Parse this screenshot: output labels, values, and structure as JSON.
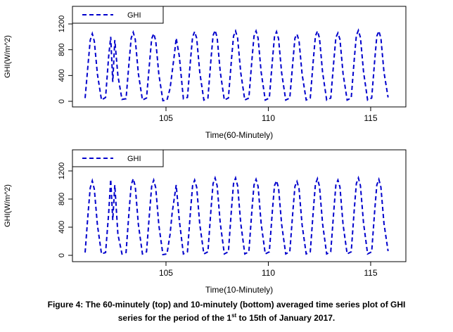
{
  "chart_data": [
    {
      "type": "line",
      "xlabel": "Time(60-Minutely)",
      "ylabel": "GHI(W/m^2)",
      "xlim": [
        100.43,
        116.72
      ],
      "ylim": [
        -87,
        1473
      ],
      "xticks": [
        105,
        110,
        115
      ],
      "yticks": [
        0,
        400,
        800,
        1200
      ],
      "legend": "top-left",
      "grid": false,
      "x": [
        101.05,
        101.2,
        101.3,
        101.4,
        101.5,
        101.65,
        101.85,
        102.05,
        102.2,
        102.3,
        102.4,
        102.5,
        102.65,
        102.85,
        103.05,
        103.2,
        103.3,
        103.4,
        103.5,
        103.65,
        103.85,
        104.05,
        104.2,
        104.3,
        104.4,
        104.5,
        104.65,
        104.85,
        105.05,
        105.2,
        105.3,
        105.4,
        105.5,
        105.65,
        105.85,
        106.05,
        106.2,
        106.3,
        106.4,
        106.5,
        106.65,
        106.85,
        107.05,
        107.2,
        107.3,
        107.4,
        107.5,
        107.65,
        107.85,
        108.05,
        108.2,
        108.3,
        108.4,
        108.5,
        108.65,
        108.85,
        109.05,
        109.2,
        109.3,
        109.4,
        109.5,
        109.65,
        109.85,
        110.05,
        110.2,
        110.3,
        110.4,
        110.5,
        110.65,
        110.85,
        111.05,
        111.2,
        111.3,
        111.4,
        111.5,
        111.65,
        111.85,
        112.05,
        112.2,
        112.3,
        112.4,
        112.5,
        112.65,
        112.85,
        113.05,
        113.2,
        113.3,
        113.4,
        113.5,
        113.65,
        113.85,
        114.05,
        114.2,
        114.3,
        114.4,
        114.5,
        114.65,
        114.85,
        115.05,
        115.2,
        115.3,
        115.4,
        115.5,
        115.65,
        115.85
      ],
      "series": [
        {
          "name": "GHI",
          "color": "#0000cc",
          "values": [
            50,
            600,
            950,
            1050,
            930,
            420,
            20,
            60,
            700,
            1000,
            300,
            950,
            400,
            30,
            40,
            620,
            980,
            1070,
            960,
            430,
            20,
            50,
            610,
            970,
            1050,
            940,
            420,
            10,
            20,
            200,
            450,
            700,
            980,
            700,
            40,
            60,
            650,
            1000,
            1080,
            980,
            450,
            20,
            50,
            660,
            1020,
            1100,
            990,
            460,
            20,
            50,
            650,
            1010,
            1090,
            980,
            450,
            20,
            50,
            650,
            1010,
            1090,
            980,
            450,
            20,
            50,
            640,
            1000,
            1080,
            970,
            440,
            20,
            50,
            620,
            980,
            1040,
            940,
            420,
            20,
            50,
            650,
            1010,
            1090,
            980,
            450,
            20,
            50,
            630,
            990,
            1060,
            960,
            430,
            20,
            50,
            660,
            1020,
            1100,
            990,
            460,
            20,
            50,
            650,
            1010,
            1090,
            980,
            450,
            60
          ]
        }
      ]
    },
    {
      "type": "line",
      "xlabel": "Time(10-Minutely)",
      "ylabel": "GHI(W/m^2)",
      "xlim": [
        100.43,
        116.72
      ],
      "ylim": [
        -90,
        1500
      ],
      "xticks": [
        105,
        110,
        115
      ],
      "yticks": [
        0,
        400,
        800,
        1200
      ],
      "legend": "top-left",
      "grid": false,
      "x": [
        101.05,
        101.2,
        101.3,
        101.4,
        101.5,
        101.65,
        101.85,
        102.05,
        102.2,
        102.3,
        102.4,
        102.5,
        102.65,
        102.85,
        103.05,
        103.2,
        103.3,
        103.4,
        103.5,
        103.65,
        103.85,
        104.05,
        104.2,
        104.3,
        104.4,
        104.5,
        104.65,
        104.85,
        105.05,
        105.2,
        105.3,
        105.4,
        105.5,
        105.65,
        105.85,
        106.05,
        106.2,
        106.3,
        106.4,
        106.5,
        106.65,
        106.85,
        107.05,
        107.2,
        107.3,
        107.4,
        107.5,
        107.65,
        107.85,
        108.05,
        108.2,
        108.3,
        108.4,
        108.5,
        108.65,
        108.85,
        109.05,
        109.2,
        109.3,
        109.4,
        109.5,
        109.65,
        109.85,
        110.05,
        110.2,
        110.3,
        110.4,
        110.5,
        110.65,
        110.85,
        111.05,
        111.2,
        111.3,
        111.4,
        111.5,
        111.65,
        111.85,
        112.05,
        112.2,
        112.3,
        112.4,
        112.5,
        112.65,
        112.85,
        113.05,
        113.2,
        113.3,
        113.4,
        113.5,
        113.65,
        113.85,
        114.05,
        114.2,
        114.3,
        114.4,
        114.5,
        114.65,
        114.85,
        115.05,
        115.2,
        115.3,
        115.4,
        115.5,
        115.65,
        115.85
      ],
      "series": [
        {
          "name": "GHI",
          "color": "#0000cc",
          "values": [
            40,
            620,
            960,
            1060,
            940,
            430,
            20,
            40,
            600,
            1080,
            500,
            1000,
            300,
            20,
            40,
            640,
            1000,
            1090,
            980,
            440,
            20,
            50,
            620,
            980,
            1070,
            960,
            430,
            10,
            20,
            300,
            600,
            800,
            1000,
            500,
            20,
            50,
            640,
            990,
            1070,
            970,
            440,
            20,
            50,
            660,
            1020,
            1100,
            990,
            460,
            20,
            50,
            660,
            1020,
            1100,
            990,
            460,
            20,
            50,
            650,
            1000,
            1080,
            980,
            450,
            20,
            50,
            640,
            990,
            1060,
            960,
            440,
            20,
            50,
            630,
            980,
            1050,
            950,
            430,
            20,
            50,
            650,
            1010,
            1090,
            980,
            450,
            20,
            50,
            640,
            1000,
            1070,
            970,
            440,
            20,
            50,
            660,
            1020,
            1100,
            990,
            460,
            20,
            50,
            650,
            1000,
            1080,
            970,
            450,
            60
          ]
        }
      ]
    }
  ],
  "caption": {
    "line1": "Figure 4: The 60-minutely (top) and 10-minutely (bottom) averaged time series plot of GHI",
    "line2_before": "series for the period of the 1",
    "line2_sup": "st",
    "line2_after": " to 15th of January 2017."
  }
}
